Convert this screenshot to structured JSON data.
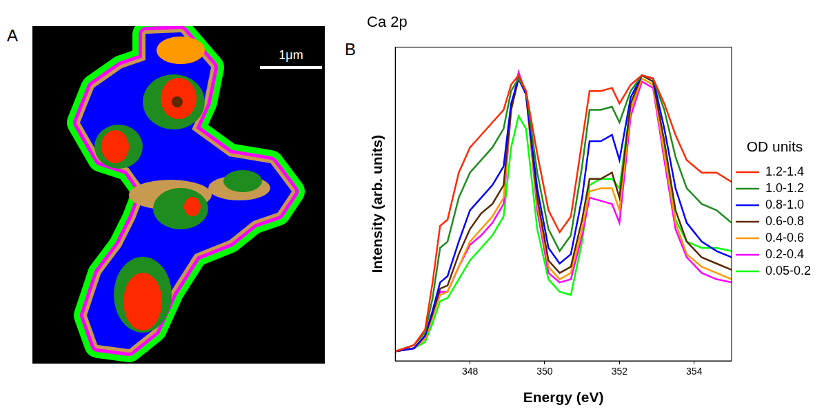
{
  "panel_a": {
    "panel_label": "A",
    "scale_bar": "1μm"
  },
  "chart_data": {
    "panel_label": "B",
    "type": "line",
    "title": "Ca 2p",
    "x_label": "Energy (eV)",
    "y_label": "Intensity (arb. units)",
    "x": [
      346.0,
      346.5,
      346.8,
      347.0,
      347.2,
      347.4,
      347.7,
      348.0,
      348.3,
      348.6,
      348.9,
      349.1,
      349.3,
      349.5,
      349.8,
      350.1,
      350.4,
      350.7,
      351.0,
      351.2,
      351.5,
      351.8,
      352.0,
      352.3,
      352.6,
      352.9,
      353.2,
      353.5,
      353.8,
      354.2,
      354.6,
      355.0
    ],
    "xlim": [
      346,
      355
    ],
    "xticks": [
      348,
      350,
      352,
      354
    ],
    "ylim": [
      0,
      1
    ],
    "tick_labels": "x",
    "grid": false,
    "legend": "right",
    "legend_title": "OD units",
    "series": [
      {
        "name": "1.2-1.4",
        "color": "#ff2a00",
        "values": [
          0.03,
          0.05,
          0.1,
          0.25,
          0.43,
          0.45,
          0.6,
          0.68,
          0.72,
          0.76,
          0.8,
          0.88,
          0.91,
          0.86,
          0.66,
          0.48,
          0.41,
          0.46,
          0.7,
          0.86,
          0.86,
          0.87,
          0.82,
          0.88,
          0.91,
          0.9,
          0.82,
          0.72,
          0.64,
          0.6,
          0.6,
          0.57
        ]
      },
      {
        "name": "1.0-1.2",
        "color": "#1e8c1e",
        "values": [
          0.03,
          0.05,
          0.09,
          0.2,
          0.36,
          0.38,
          0.52,
          0.6,
          0.64,
          0.68,
          0.74,
          0.86,
          0.9,
          0.86,
          0.6,
          0.42,
          0.35,
          0.4,
          0.62,
          0.8,
          0.8,
          0.81,
          0.76,
          0.86,
          0.91,
          0.9,
          0.8,
          0.65,
          0.55,
          0.5,
          0.48,
          0.44
        ]
      },
      {
        "name": "0.8-1.0",
        "color": "#0000ff",
        "values": [
          0.03,
          0.04,
          0.08,
          0.16,
          0.25,
          0.27,
          0.38,
          0.48,
          0.52,
          0.56,
          0.62,
          0.82,
          0.9,
          0.85,
          0.55,
          0.36,
          0.31,
          0.34,
          0.52,
          0.7,
          0.7,
          0.72,
          0.64,
          0.84,
          0.91,
          0.9,
          0.74,
          0.55,
          0.44,
          0.38,
          0.35,
          0.33
        ]
      },
      {
        "name": "0.6-0.8",
        "color": "#5c2800",
        "values": [
          0.03,
          0.04,
          0.08,
          0.15,
          0.23,
          0.24,
          0.34,
          0.42,
          0.47,
          0.5,
          0.56,
          0.8,
          0.9,
          0.85,
          0.52,
          0.32,
          0.28,
          0.3,
          0.45,
          0.58,
          0.58,
          0.6,
          0.52,
          0.82,
          0.91,
          0.89,
          0.7,
          0.48,
          0.38,
          0.33,
          0.31,
          0.29
        ]
      },
      {
        "name": "0.4-0.6",
        "color": "#ff9900",
        "values": [
          0.03,
          0.04,
          0.07,
          0.14,
          0.21,
          0.22,
          0.3,
          0.38,
          0.42,
          0.46,
          0.52,
          0.8,
          0.9,
          0.85,
          0.5,
          0.3,
          0.26,
          0.28,
          0.42,
          0.54,
          0.55,
          0.55,
          0.48,
          0.8,
          0.9,
          0.88,
          0.66,
          0.44,
          0.34,
          0.3,
          0.28,
          0.26
        ]
      },
      {
        "name": "0.2-0.4",
        "color": "#ff00ff",
        "values": [
          0.03,
          0.04,
          0.07,
          0.14,
          0.22,
          0.22,
          0.3,
          0.37,
          0.4,
          0.44,
          0.5,
          0.8,
          0.92,
          0.85,
          0.48,
          0.28,
          0.25,
          0.26,
          0.4,
          0.52,
          0.51,
          0.5,
          0.44,
          0.78,
          0.89,
          0.87,
          0.64,
          0.42,
          0.33,
          0.28,
          0.26,
          0.25
        ]
      },
      {
        "name": "0.05-0.2",
        "color": "#00ff00",
        "values": [
          0.03,
          0.04,
          0.06,
          0.12,
          0.19,
          0.2,
          0.26,
          0.32,
          0.36,
          0.4,
          0.46,
          0.68,
          0.78,
          0.74,
          0.42,
          0.26,
          0.22,
          0.21,
          0.38,
          0.56,
          0.58,
          0.58,
          0.55,
          0.82,
          0.9,
          0.88,
          0.68,
          0.45,
          0.38,
          0.36,
          0.36,
          0.35
        ]
      }
    ]
  }
}
